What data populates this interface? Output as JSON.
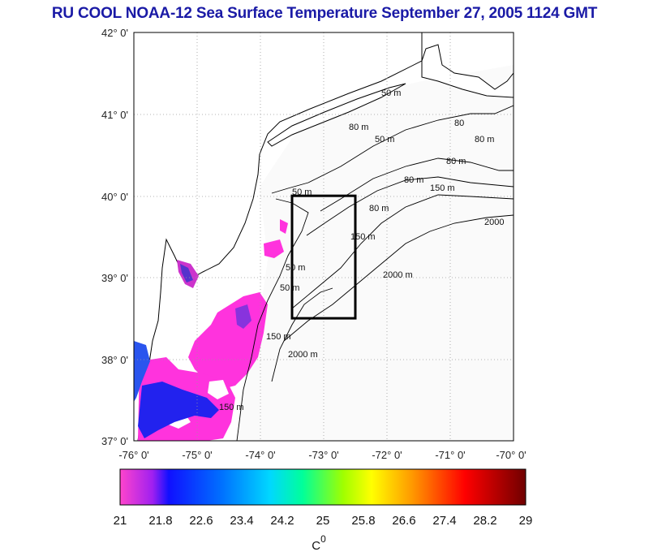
{
  "title": "RU COOL  NOAA-12 Sea Surface Temperature September 27, 2005 1124 GMT",
  "map": {
    "lon_range": [
      -76,
      -70
    ],
    "lat_range": [
      37,
      42
    ],
    "lon_ticks": [
      "-76° 0'",
      "-75° 0'",
      "-74° 0'",
      "-73° 0'",
      "-72° 0'",
      "-71° 0'",
      "-70° 0'"
    ],
    "lat_ticks": [
      "42° 0'",
      "41° 0'",
      "40° 0'",
      "39° 0'",
      "38° 0'",
      "37° 0'"
    ],
    "grid": true,
    "box": {
      "lon_min": -73.5,
      "lon_max": -72.5,
      "lat_min": 38.5,
      "lat_max": 40.0
    },
    "contour_labels": [
      "50 m",
      "50 m",
      "50 m",
      "50 m",
      "80 m",
      "80 m",
      "80 m",
      "150 m",
      "150 m",
      "150 m",
      "150 m",
      "2000",
      "2000 m",
      "2000 m",
      "50 m",
      "80 m",
      "80",
      "80 m"
    ]
  },
  "colorbar": {
    "ticks": [
      "21",
      "21.8",
      "22.6",
      "23.4",
      "24.2",
      "25",
      "25.8",
      "26.6",
      "27.4",
      "28.2",
      "29"
    ],
    "unit": "C",
    "unit_superscript": "0",
    "range": [
      21,
      29
    ]
  }
}
